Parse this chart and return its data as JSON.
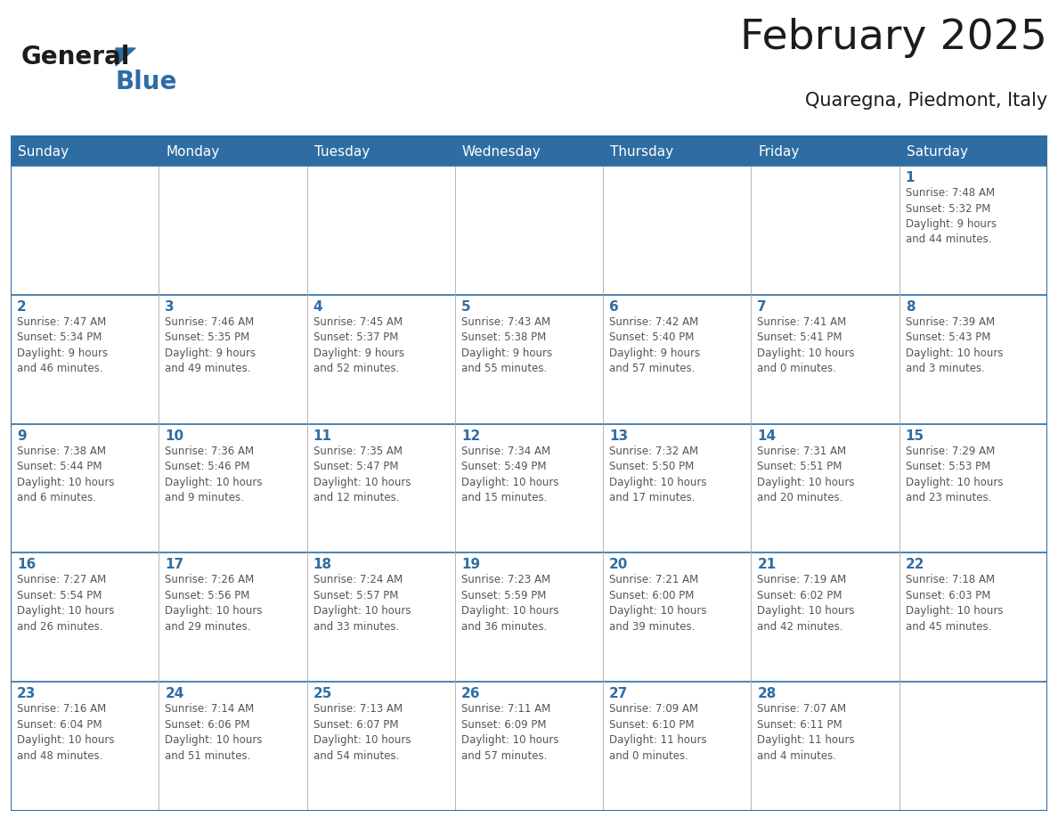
{
  "title": "February 2025",
  "subtitle": "Quaregna, Piedmont, Italy",
  "days_of_week": [
    "Sunday",
    "Monday",
    "Tuesday",
    "Wednesday",
    "Thursday",
    "Friday",
    "Saturday"
  ],
  "header_bg": "#2E6DA4",
  "header_text": "#FFFFFF",
  "day_number_color": "#2E6DA4",
  "cell_text_color": "#555555",
  "border_color": "#2E6DA4",
  "light_border_color": "#AAAAAA",
  "weeks": [
    [
      {
        "day": null,
        "info": null
      },
      {
        "day": null,
        "info": null
      },
      {
        "day": null,
        "info": null
      },
      {
        "day": null,
        "info": null
      },
      {
        "day": null,
        "info": null
      },
      {
        "day": null,
        "info": null
      },
      {
        "day": 1,
        "info": "Sunrise: 7:48 AM\nSunset: 5:32 PM\nDaylight: 9 hours\nand 44 minutes."
      }
    ],
    [
      {
        "day": 2,
        "info": "Sunrise: 7:47 AM\nSunset: 5:34 PM\nDaylight: 9 hours\nand 46 minutes."
      },
      {
        "day": 3,
        "info": "Sunrise: 7:46 AM\nSunset: 5:35 PM\nDaylight: 9 hours\nand 49 minutes."
      },
      {
        "day": 4,
        "info": "Sunrise: 7:45 AM\nSunset: 5:37 PM\nDaylight: 9 hours\nand 52 minutes."
      },
      {
        "day": 5,
        "info": "Sunrise: 7:43 AM\nSunset: 5:38 PM\nDaylight: 9 hours\nand 55 minutes."
      },
      {
        "day": 6,
        "info": "Sunrise: 7:42 AM\nSunset: 5:40 PM\nDaylight: 9 hours\nand 57 minutes."
      },
      {
        "day": 7,
        "info": "Sunrise: 7:41 AM\nSunset: 5:41 PM\nDaylight: 10 hours\nand 0 minutes."
      },
      {
        "day": 8,
        "info": "Sunrise: 7:39 AM\nSunset: 5:43 PM\nDaylight: 10 hours\nand 3 minutes."
      }
    ],
    [
      {
        "day": 9,
        "info": "Sunrise: 7:38 AM\nSunset: 5:44 PM\nDaylight: 10 hours\nand 6 minutes."
      },
      {
        "day": 10,
        "info": "Sunrise: 7:36 AM\nSunset: 5:46 PM\nDaylight: 10 hours\nand 9 minutes."
      },
      {
        "day": 11,
        "info": "Sunrise: 7:35 AM\nSunset: 5:47 PM\nDaylight: 10 hours\nand 12 minutes."
      },
      {
        "day": 12,
        "info": "Sunrise: 7:34 AM\nSunset: 5:49 PM\nDaylight: 10 hours\nand 15 minutes."
      },
      {
        "day": 13,
        "info": "Sunrise: 7:32 AM\nSunset: 5:50 PM\nDaylight: 10 hours\nand 17 minutes."
      },
      {
        "day": 14,
        "info": "Sunrise: 7:31 AM\nSunset: 5:51 PM\nDaylight: 10 hours\nand 20 minutes."
      },
      {
        "day": 15,
        "info": "Sunrise: 7:29 AM\nSunset: 5:53 PM\nDaylight: 10 hours\nand 23 minutes."
      }
    ],
    [
      {
        "day": 16,
        "info": "Sunrise: 7:27 AM\nSunset: 5:54 PM\nDaylight: 10 hours\nand 26 minutes."
      },
      {
        "day": 17,
        "info": "Sunrise: 7:26 AM\nSunset: 5:56 PM\nDaylight: 10 hours\nand 29 minutes."
      },
      {
        "day": 18,
        "info": "Sunrise: 7:24 AM\nSunset: 5:57 PM\nDaylight: 10 hours\nand 33 minutes."
      },
      {
        "day": 19,
        "info": "Sunrise: 7:23 AM\nSunset: 5:59 PM\nDaylight: 10 hours\nand 36 minutes."
      },
      {
        "day": 20,
        "info": "Sunrise: 7:21 AM\nSunset: 6:00 PM\nDaylight: 10 hours\nand 39 minutes."
      },
      {
        "day": 21,
        "info": "Sunrise: 7:19 AM\nSunset: 6:02 PM\nDaylight: 10 hours\nand 42 minutes."
      },
      {
        "day": 22,
        "info": "Sunrise: 7:18 AM\nSunset: 6:03 PM\nDaylight: 10 hours\nand 45 minutes."
      }
    ],
    [
      {
        "day": 23,
        "info": "Sunrise: 7:16 AM\nSunset: 6:04 PM\nDaylight: 10 hours\nand 48 minutes."
      },
      {
        "day": 24,
        "info": "Sunrise: 7:14 AM\nSunset: 6:06 PM\nDaylight: 10 hours\nand 51 minutes."
      },
      {
        "day": 25,
        "info": "Sunrise: 7:13 AM\nSunset: 6:07 PM\nDaylight: 10 hours\nand 54 minutes."
      },
      {
        "day": 26,
        "info": "Sunrise: 7:11 AM\nSunset: 6:09 PM\nDaylight: 10 hours\nand 57 minutes."
      },
      {
        "day": 27,
        "info": "Sunrise: 7:09 AM\nSunset: 6:10 PM\nDaylight: 11 hours\nand 0 minutes."
      },
      {
        "day": 28,
        "info": "Sunrise: 7:07 AM\nSunset: 6:11 PM\nDaylight: 11 hours\nand 4 minutes."
      },
      {
        "day": null,
        "info": null
      }
    ]
  ],
  "fig_width": 11.88,
  "fig_height": 9.18,
  "dpi": 100
}
